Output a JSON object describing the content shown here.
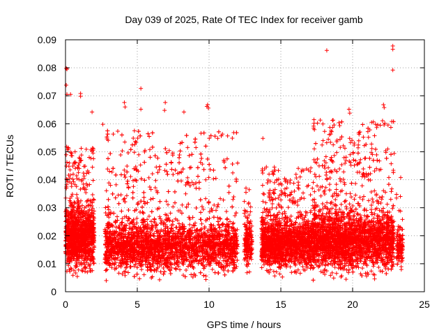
{
  "chart_data": {
    "type": "scatter",
    "title": "Day 039 of 2025, Rate Of TEC Index for receiver gamb",
    "xlabel": "GPS time / hours",
    "ylabel": "ROTI / TECUs",
    "xlim": [
      0,
      25
    ],
    "ylim": [
      0,
      0.09
    ],
    "x_ticks": [
      0,
      5,
      10,
      15,
      20,
      25
    ],
    "y_ticks": [
      0,
      0.01,
      0.02,
      0.03,
      0.04,
      0.05,
      0.06,
      0.07,
      0.08,
      0.09
    ],
    "x_tick_labels": [
      "0",
      "5",
      "10",
      "15",
      "20",
      "25"
    ],
    "y_tick_labels": [
      "0",
      "0.01",
      "0.02",
      "0.03",
      "0.04",
      "0.05",
      "0.06",
      "0.07",
      "0.08",
      "0.09"
    ],
    "grid": true,
    "marker": "+",
    "color": "#ff0000",
    "outliers": [
      {
        "x": 0.05,
        "y": 0.0798
      },
      {
        "x": 0.1,
        "y": 0.0795
      },
      {
        "x": 0.05,
        "y": 0.0738
      },
      {
        "x": 0.1,
        "y": 0.0705
      },
      {
        "x": 0.35,
        "y": 0.0705
      },
      {
        "x": 1.05,
        "y": 0.0708
      },
      {
        "x": 1.05,
        "y": 0.0698
      },
      {
        "x": 2.6,
        "y": 0.0598
      },
      {
        "x": 4.1,
        "y": 0.0676
      },
      {
        "x": 4.15,
        "y": 0.066
      },
      {
        "x": 5.25,
        "y": 0.0726
      },
      {
        "x": 5.25,
        "y": 0.0652
      },
      {
        "x": 6.95,
        "y": 0.0676
      },
      {
        "x": 6.9,
        "y": 0.0648
      },
      {
        "x": 8.25,
        "y": 0.0642
      },
      {
        "x": 9.9,
        "y": 0.0668
      },
      {
        "x": 9.95,
        "y": 0.0656
      },
      {
        "x": 9.85,
        "y": 0.0662
      },
      {
        "x": 18.2,
        "y": 0.0862
      },
      {
        "x": 22.8,
        "y": 0.0878
      },
      {
        "x": 22.8,
        "y": 0.0866
      },
      {
        "x": 22.8,
        "y": 0.0792
      },
      {
        "x": 18.6,
        "y": 0.0612
      },
      {
        "x": 19.75,
        "y": 0.0652
      },
      {
        "x": 19.8,
        "y": 0.0638
      },
      {
        "x": 20.45,
        "y": 0.0562
      },
      {
        "x": 21.2,
        "y": 0.0578
      },
      {
        "x": 22.15,
        "y": 0.0668
      },
      {
        "x": 22.2,
        "y": 0.0658
      },
      {
        "x": 21.6,
        "y": 0.0598
      },
      {
        "x": 1.85,
        "y": 0.0642
      },
      {
        "x": 4.8,
        "y": 0.0575
      },
      {
        "x": 10.6,
        "y": 0.0548
      },
      {
        "x": 13.75,
        "y": 0.0548
      },
      {
        "x": 23.35,
        "y": 0.0408
      }
    ],
    "bulk_segments": [
      {
        "x_start": 0.0,
        "x_end": 2.0,
        "count": 1200,
        "y_min": 0.004,
        "y_mid": 0.019,
        "y_max": 0.052
      },
      {
        "x_start": 2.75,
        "x_end": 12.0,
        "count": 3600,
        "y_min": 0.003,
        "y_mid": 0.016,
        "y_max": 0.058
      },
      {
        "x_start": 12.45,
        "x_end": 13.0,
        "count": 180,
        "y_min": 0.005,
        "y_mid": 0.017,
        "y_max": 0.04
      },
      {
        "x_start": 13.65,
        "x_end": 17.2,
        "count": 1500,
        "y_min": 0.004,
        "y_mid": 0.017,
        "y_max": 0.045
      },
      {
        "x_start": 17.2,
        "x_end": 22.9,
        "count": 2600,
        "y_min": 0.003,
        "y_mid": 0.018,
        "y_max": 0.062
      },
      {
        "x_start": 23.05,
        "x_end": 23.5,
        "count": 120,
        "y_min": 0.007,
        "y_mid": 0.016,
        "y_max": 0.035
      }
    ]
  }
}
